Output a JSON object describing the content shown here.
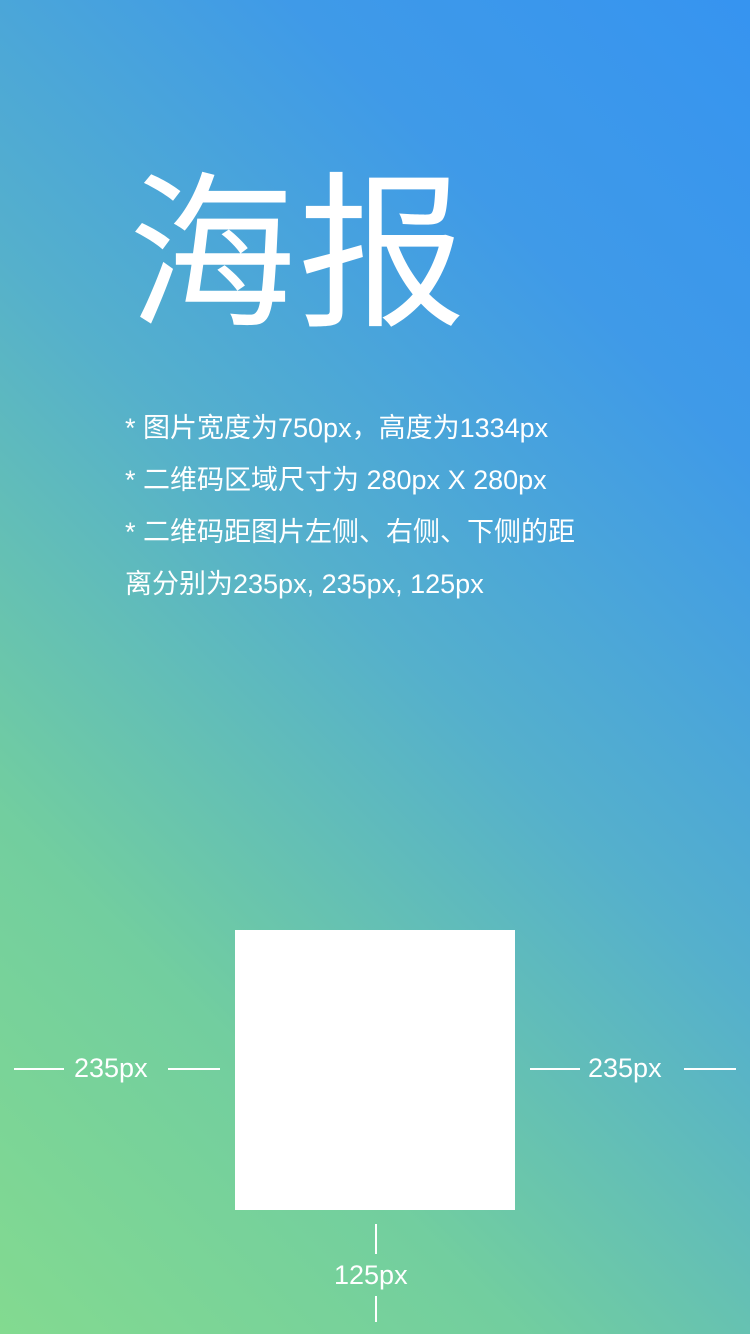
{
  "poster": {
    "title": "海报",
    "notes": [
      "* 图片宽度为750px，高度为1334px",
      "* 二维码区域尺寸为 280px X 280px",
      "* 二维码距图片左侧、右侧、下侧的距",
      "离分别为235px, 235px, 125px"
    ]
  },
  "dimensions": {
    "left_label": "235px",
    "right_label": "235px",
    "bottom_label": "125px"
  },
  "colors": {
    "gradient_top_right": "#3694f0",
    "gradient_bottom_left": "#83da90",
    "text": "#ffffff",
    "qr_area": "#ffffff"
  }
}
